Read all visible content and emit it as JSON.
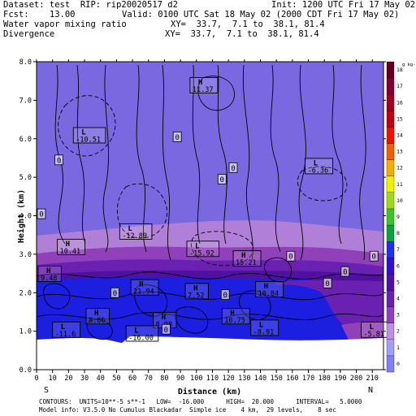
{
  "header": {
    "dataset": "Dataset: test  RIP: rip20020517 d2",
    "init": "Init: 1200 UTC Fri 17 May 02",
    "fcst": "Fcst:    13.00",
    "valid": "Valid: 0100 UTC Sat 18 May 02 (2000 CDT Fri 17 May 02)",
    "field1": "Water vapor mixing ratio",
    "xy1": "XY=  33.7,  7.1 to  38.1, 81.4",
    "field2": "Divergence",
    "xy2": "XY=  33.7,  7.1 to  38.1, 81.4"
  },
  "footer": {
    "line1": "CONTOURS:  UNITS=10**-5 s**-1   LOW=  -16.000      HIGH=  20.000      INTERVAL=   5.0000",
    "line2": "Model info: V3.5.0 No Cumulus Blackadar  Simple ice    4 km,  29 levels,    8 sec"
  },
  "colors": {
    "background": "#8080ec",
    "upper_layer": "#7a68e0",
    "pink_layer": "#b080d8",
    "magenta_layer": "#9040b8",
    "purple_layer": "#6a20b0",
    "dark_purple": "#5010a0",
    "blue_low": "#1c1ee0",
    "ground": "#ffffff"
  },
  "chart_data": {
    "type": "heatmap",
    "title": "",
    "xlabel": "Distance (km)",
    "ylabel": "Height (km)",
    "xlim": [
      0,
      217
    ],
    "ylim": [
      0,
      8
    ],
    "x_ticks": [
      0,
      10,
      20,
      30,
      40,
      50,
      60,
      70,
      80,
      90,
      100,
      110,
      120,
      130,
      140,
      150,
      160,
      170,
      180,
      190,
      200,
      210
    ],
    "y_ticks": [
      0.0,
      1.0,
      2.0,
      3.0,
      4.0,
      5.0,
      6.0,
      7.0,
      8.0
    ],
    "left_endpoint": "S",
    "right_endpoint": "N",
    "colorbar": {
      "unit": "g kg-1",
      "labels": [
        "0",
        "1",
        "2",
        "3",
        "4",
        "5",
        "6",
        "7",
        "8",
        "9",
        "10",
        "11",
        "12",
        "13",
        "14",
        "15",
        "16",
        "17",
        "18"
      ],
      "colors": [
        "#8080f0",
        "#a0a0f8",
        "#c090e0",
        "#9040b8",
        "#6a20b0",
        "#5010a0",
        "#3010c8",
        "#2030e8",
        "#10a040",
        "#40c030",
        "#a0d820",
        "#f0f000",
        "#f0b000",
        "#f06000",
        "#f01000",
        "#c00010",
        "#a00020",
        "#800030",
        "#600020"
      ]
    },
    "annotations": [
      {
        "type": "H",
        "value": "11.37",
        "x": 96,
        "y": 7.4
      },
      {
        "type": "L",
        "value": "-10.51",
        "x": 23,
        "y": 6.1
      },
      {
        "type": "L",
        "value": "-6.36",
        "x": 168,
        "y": 5.3
      },
      {
        "type": "L",
        "value": "-12.89",
        "x": 52,
        "y": 3.6
      },
      {
        "type": "L",
        "value": "-15.92",
        "x": 94,
        "y": 3.15
      },
      {
        "type": "H",
        "value": "10.41",
        "x": 13,
        "y": 3.2
      },
      {
        "type": "H",
        "value": "15.21",
        "x": 123,
        "y": 2.9
      },
      {
        "type": "H",
        "value": "9.48",
        "x": 1,
        "y": 2.5
      },
      {
        "type": "H",
        "value": "21.94",
        "x": 59,
        "y": 2.15
      },
      {
        "type": "H",
        "value": "7.52",
        "x": 93,
        "y": 2.05
      },
      {
        "type": "H",
        "value": "10.04",
        "x": 137,
        "y": 2.1
      },
      {
        "type": "H",
        "value": "8.86",
        "x": 31,
        "y": 1.4
      },
      {
        "type": "H",
        "value": "8.98",
        "x": 73,
        "y": 1.3
      },
      {
        "type": "H",
        "value": "10.75",
        "x": 116,
        "y": 1.4
      },
      {
        "type": "L",
        "value": "-11.6",
        "x": 10,
        "y": 1.05
      },
      {
        "type": "L",
        "value": "-16.00",
        "x": 56,
        "y": 0.95
      },
      {
        "type": "L",
        "value": "-8.91",
        "x": 134,
        "y": 1.1
      },
      {
        "type": "L",
        "value": "-5.81",
        "x": 203,
        "y": 1.05
      }
    ],
    "zero_labels": [
      {
        "value": "0",
        "x": 3,
        "y": 4.05
      },
      {
        "value": "0",
        "x": 14,
        "y": 5.45
      },
      {
        "value": "0",
        "x": 88,
        "y": 6.05
      },
      {
        "value": "0",
        "x": 116,
        "y": 4.95
      },
      {
        "value": "0",
        "x": 123,
        "y": 5.25
      },
      {
        "value": "0",
        "x": 49,
        "y": 2.0
      },
      {
        "value": "0",
        "x": 182,
        "y": 2.25
      },
      {
        "value": "0",
        "x": 193,
        "y": 2.55
      },
      {
        "value": "0",
        "x": 159,
        "y": 2.95
      },
      {
        "value": "0",
        "x": 211,
        "y": 2.95
      },
      {
        "value": "0",
        "x": 118,
        "y": 1.95
      },
      {
        "value": "0",
        "x": 81,
        "y": 1.05
      }
    ]
  }
}
